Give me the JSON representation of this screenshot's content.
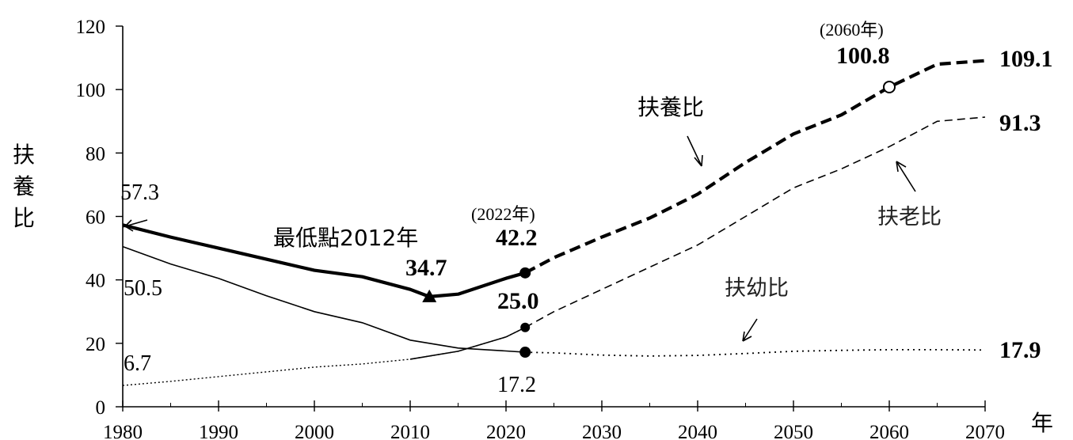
{
  "chart_data": {
    "type": "line",
    "ylabel": "扶養比",
    "xlabel": "年",
    "ylim": [
      0,
      120
    ],
    "xlim": [
      1980,
      2070
    ],
    "yticks": [
      0,
      20,
      40,
      60,
      80,
      100,
      120
    ],
    "xticks": [
      1980,
      1990,
      2000,
      2010,
      2020,
      2030,
      2040,
      2050,
      2060,
      2070
    ],
    "grid": false,
    "series": [
      {
        "name": "扶養比",
        "color": "#000000",
        "x": [
          1980,
          1985,
          1990,
          1995,
          2000,
          2005,
          2010,
          2012,
          2015,
          2020,
          2022,
          2025,
          2030,
          2035,
          2040,
          2045,
          2050,
          2055,
          2060,
          2065,
          2070
        ],
        "y": [
          57.3,
          53.5,
          50.0,
          46.5,
          43.0,
          41.0,
          37.0,
          34.7,
          35.5,
          40.5,
          42.2,
          47.0,
          53.5,
          59.5,
          67.0,
          77.0,
          86.0,
          92.0,
          100.8,
          108.0,
          109.1
        ]
      },
      {
        "name": "扶老比",
        "color": "#000000",
        "x": [
          1980,
          1985,
          1990,
          1995,
          2000,
          2005,
          2010,
          2015,
          2020,
          2022,
          2025,
          2030,
          2035,
          2040,
          2045,
          2050,
          2055,
          2060,
          2065,
          2070
        ],
        "y": [
          6.7,
          8.0,
          9.5,
          11.0,
          12.5,
          13.5,
          15.0,
          17.5,
          22.0,
          25.0,
          30.0,
          37.0,
          44.0,
          51.0,
          60.0,
          69.0,
          75.0,
          82.0,
          90.0,
          91.3
        ]
      },
      {
        "name": "扶幼比",
        "color": "#000000",
        "x": [
          1980,
          1985,
          1990,
          1995,
          2000,
          2005,
          2010,
          2015,
          2020,
          2022,
          2025,
          2030,
          2035,
          2040,
          2045,
          2050,
          2055,
          2060,
          2065,
          2070
        ],
        "y": [
          50.5,
          45.0,
          40.5,
          35.0,
          30.0,
          26.5,
          21.0,
          18.5,
          17.6,
          17.2,
          17.0,
          16.3,
          16.0,
          16.2,
          16.8,
          17.5,
          17.8,
          18.0,
          18.0,
          17.9
        ]
      }
    ],
    "annotations": {
      "start_total": "57.3",
      "start_child": "50.5",
      "start_old": "6.7",
      "lowest_label": "最低點2012年",
      "lowest_value": "34.7",
      "year_2022": "(2022年)",
      "total_2022": "42.2",
      "old_2022": "25.0",
      "child_2022": "17.2",
      "year_2060": "(2060年)",
      "total_2060": "100.8",
      "end_total": "109.1",
      "end_old": "91.3",
      "end_child": "17.9"
    },
    "series_labels": {
      "total": "扶養比",
      "old": "扶老比",
      "child": "扶幼比"
    }
  }
}
